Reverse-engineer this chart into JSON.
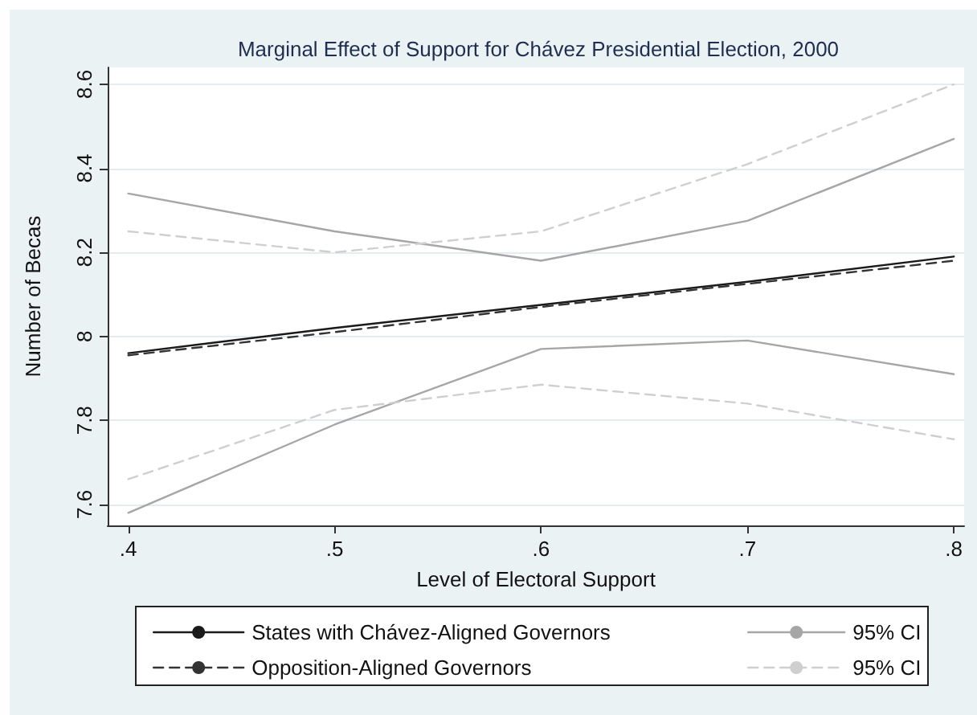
{
  "chart_data": {
    "type": "line",
    "title": "Marginal Effect of Support for Chávez Presidential Election, 2000",
    "xlabel": "Level of Electoral Support",
    "ylabel": "Number of Becas",
    "x": [
      0.4,
      0.5,
      0.6,
      0.7,
      0.8
    ],
    "series": [
      {
        "name": "States with Chávez-Aligned Governors",
        "color": "#1a1a1a",
        "line_style": "solid",
        "values": [
          7.96,
          8.02,
          8.075,
          8.13,
          8.19
        ]
      },
      {
        "name": "Opposition-Aligned Governors",
        "color": "#333333",
        "line_style": "dashed",
        "values": [
          7.955,
          8.01,
          8.07,
          8.125,
          8.18
        ]
      },
      {
        "name": "95% CI",
        "color": "#a6a6a6",
        "line_style": "solid",
        "values": [
          8.34,
          8.25,
          8.18,
          8.275,
          8.47
        ]
      },
      {
        "color": "#a6a6a6",
        "line_style": "solid",
        "values": [
          7.58,
          7.79,
          7.97,
          7.99,
          7.91
        ]
      },
      {
        "name": "95% CI",
        "color": "#cfcfcf",
        "line_style": "dashed",
        "values": [
          8.25,
          8.2,
          8.25,
          8.41,
          8.6
        ]
      },
      {
        "color": "#cfcfcf",
        "line_style": "dashed",
        "values": [
          7.66,
          7.825,
          7.885,
          7.84,
          7.755
        ]
      }
    ],
    "xlim": [
      0.39,
      0.805
    ],
    "xticks": [
      {
        "value": 0.4,
        "label": ".4"
      },
      {
        "value": 0.5,
        "label": ".5"
      },
      {
        "value": 0.6,
        "label": ".6"
      },
      {
        "value": 0.7,
        "label": ".7"
      },
      {
        "value": 0.8,
        "label": ".8"
      }
    ],
    "ylim": [
      7.55,
      8.64
    ],
    "yticks": [
      7.6,
      7.8,
      8,
      8.2,
      8.4,
      8.6
    ],
    "grid": "y",
    "legend": "bottom",
    "marker": "none"
  }
}
